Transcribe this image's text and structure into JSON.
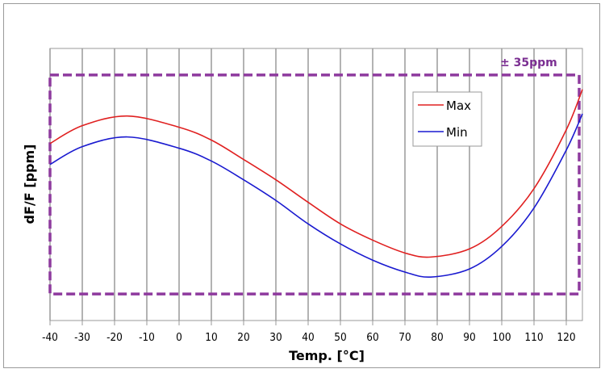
{
  "chart_data": {
    "type": "line",
    "title": "",
    "xlabel": "Temp. [°C]",
    "ylabel": "dF/F [ppm]",
    "xlim": [
      -40,
      125
    ],
    "ylim": [
      -43.5,
      43.5
    ],
    "xticks": [
      -40,
      -30,
      -20,
      -10,
      0,
      10,
      20,
      30,
      40,
      50,
      60,
      70,
      80,
      90,
      100,
      110,
      120
    ],
    "grid": "vertical",
    "legend_position": "top-right",
    "series": [
      {
        "name": "Max",
        "color": "#e02020",
        "x": [
          -40,
          -30,
          -16,
          0,
          10,
          20,
          30,
          40,
          50,
          60,
          70,
          78,
          90,
          100,
          110,
          120,
          125
        ],
        "y": [
          13.1,
          18.8,
          21.9,
          18.3,
          14.2,
          8.0,
          1.5,
          -5.7,
          -12.6,
          -17.8,
          -21.9,
          -23.2,
          -20.6,
          -13.4,
          -1.3,
          17.5,
          30.4
        ]
      },
      {
        "name": "Min",
        "color": "#1a1ad0",
        "x": [
          -40,
          -30,
          -16,
          0,
          10,
          20,
          30,
          40,
          50,
          60,
          70,
          78,
          90,
          100,
          110,
          120,
          125
        ],
        "y": [
          6.4,
          12.1,
          15.2,
          11.6,
          7.5,
          1.5,
          -5.1,
          -12.6,
          -19.0,
          -24.2,
          -28.0,
          -29.6,
          -27.0,
          -19.8,
          -7.5,
          11.0,
          22.6
        ]
      }
    ],
    "annotation": {
      "label": "± 35ppm",
      "limit": 35,
      "color": "#8e3a9e"
    }
  }
}
